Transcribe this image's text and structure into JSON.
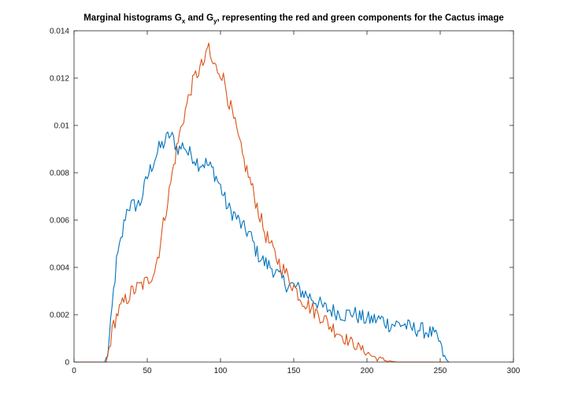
{
  "chart_data": {
    "type": "line",
    "title": {
      "part1": "Marginal histograms G",
      "sub1": "x",
      "part2": " and G",
      "sub2": "y",
      "part3": ", representing the red and green components for the Cactus image"
    },
    "xlabel": "",
    "ylabel": "",
    "xlim": [
      0,
      300
    ],
    "ylim": [
      0,
      0.014
    ],
    "xticks": [
      0,
      50,
      100,
      150,
      200,
      250,
      300
    ],
    "yticks": [
      0,
      0.002,
      0.004,
      0.006,
      0.008,
      0.01,
      0.012,
      0.014
    ],
    "xtick_labels": [
      "0",
      "50",
      "100",
      "150",
      "200",
      "250",
      "300"
    ],
    "ytick_labels": [
      "0",
      "0.002",
      "0.004",
      "0.006",
      "0.008",
      "0.01",
      "0.012",
      "0.014"
    ],
    "grid": false,
    "legend": "none",
    "series": [
      {
        "color": "#0072bd",
        "x": [
          0,
          21,
          23,
          25,
          27,
          29,
          31,
          33,
          35,
          37,
          40,
          45,
          50,
          55,
          58,
          62,
          65,
          68,
          70,
          72,
          75,
          78,
          80,
          85,
          90,
          95,
          100,
          105,
          110,
          115,
          120,
          125,
          130,
          135,
          140,
          145,
          150,
          155,
          160,
          165,
          170,
          175,
          180,
          185,
          190,
          195,
          200,
          205,
          210,
          215,
          220,
          225,
          230,
          235,
          240,
          245,
          248,
          250,
          252,
          254,
          256
        ],
        "y": [
          0,
          0,
          0.0003,
          0.0015,
          0.003,
          0.0042,
          0.0048,
          0.0054,
          0.0062,
          0.0066,
          0.0066,
          0.0067,
          0.0078,
          0.0086,
          0.009,
          0.0093,
          0.0096,
          0.0094,
          0.0091,
          0.009,
          0.0092,
          0.0088,
          0.0088,
          0.0084,
          0.0084,
          0.0081,
          0.0074,
          0.0065,
          0.0062,
          0.0057,
          0.0054,
          0.0046,
          0.0042,
          0.004,
          0.0036,
          0.0033,
          0.0032,
          0.003,
          0.0028,
          0.0026,
          0.0023,
          0.0022,
          0.0021,
          0.002,
          0.0021,
          0.0019,
          0.0018,
          0.0018,
          0.0018,
          0.0016,
          0.0016,
          0.0016,
          0.0014,
          0.0014,
          0.0013,
          0.0012,
          0.001,
          0.0008,
          0.0003,
          0.0001,
          0
        ]
      },
      {
        "color": "#d95319",
        "x": [
          0,
          22,
          23,
          25,
          27,
          30,
          35,
          40,
          45,
          50,
          55,
          58,
          62,
          65,
          68,
          70,
          72,
          75,
          78,
          80,
          83,
          85,
          88,
          90,
          92,
          93,
          95,
          97,
          100,
          103,
          105,
          110,
          115,
          120,
          125,
          130,
          135,
          140,
          145,
          150,
          155,
          160,
          165,
          170,
          175,
          180,
          185,
          190,
          195,
          200,
          205,
          210,
          215,
          220,
          225,
          230,
          250,
          300
        ],
        "y": [
          0,
          0,
          0.0003,
          0.0009,
          0.0016,
          0.0021,
          0.0026,
          0.003,
          0.0032,
          0.0034,
          0.0039,
          0.0047,
          0.0062,
          0.0072,
          0.0083,
          0.009,
          0.0096,
          0.0104,
          0.0111,
          0.0116,
          0.0121,
          0.0123,
          0.0126,
          0.0128,
          0.0135,
          0.0128,
          0.0126,
          0.0124,
          0.0123,
          0.0118,
          0.0112,
          0.01,
          0.0087,
          0.0077,
          0.0066,
          0.0055,
          0.0048,
          0.0042,
          0.0037,
          0.0032,
          0.0027,
          0.0024,
          0.0021,
          0.0019,
          0.0015,
          0.0013,
          0.001,
          0.0008,
          0.0006,
          0.0004,
          0.0002,
          0.0001,
          5e-05,
          0,
          0,
          0,
          0,
          0
        ]
      }
    ]
  }
}
